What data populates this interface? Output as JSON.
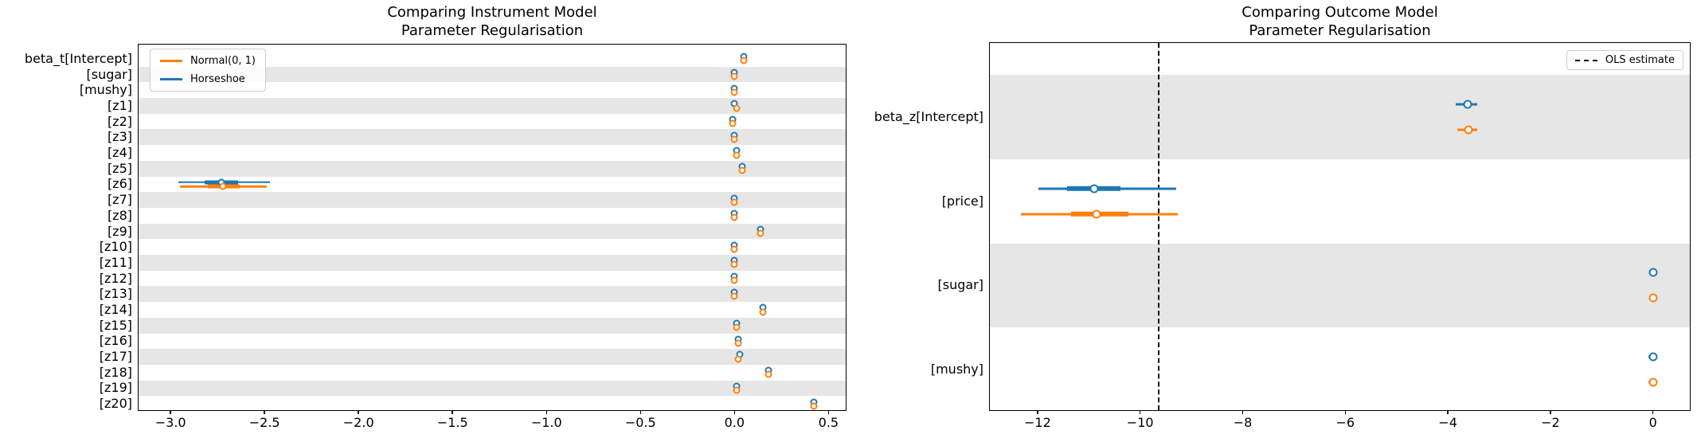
{
  "colors": {
    "horseshoe": "#1f77b4",
    "normal": "#ff7f0e",
    "row_band": "#e6e6e6",
    "ols_line": "#000000",
    "spine": "#000000",
    "legend_border": "#cccccc"
  },
  "left": {
    "title1": "Comparing Instrument Model",
    "title2": "Parameter Regularisation",
    "legend": {
      "normal_label": "Normal(0, 1)",
      "horseshoe_label": "Horseshoe"
    },
    "chart_data": {
      "type": "forest",
      "orientation": "horizontal",
      "legend_position": "upper-left",
      "series_names": [
        "Horseshoe",
        "Normal(0, 1)"
      ],
      "xlim": [
        -3.17,
        0.6
      ],
      "xticks": [
        -3.0,
        -2.5,
        -2.0,
        -1.5,
        -1.0,
        -0.5,
        0.0,
        0.5
      ],
      "xtick_labels": [
        "−3.0",
        "−2.5",
        "−2.0",
        "−1.5",
        "−1.0",
        "−0.5",
        "0.0",
        "0.5"
      ],
      "shaded_rows": "odd",
      "rows": [
        {
          "label": "beta_t[Intercept]",
          "horseshoe": {
            "median": 0.05
          },
          "normal": {
            "median": 0.05
          }
        },
        {
          "label": "[sugar]",
          "horseshoe": {
            "median": 0.0
          },
          "normal": {
            "median": 0.0
          }
        },
        {
          "label": "[mushy]",
          "horseshoe": {
            "median": 0.0
          },
          "normal": {
            "median": 0.0
          }
        },
        {
          "label": "[z1]",
          "horseshoe": {
            "median": 0.0
          },
          "normal": {
            "median": 0.01
          }
        },
        {
          "label": "[z2]",
          "horseshoe": {
            "median": -0.01
          },
          "normal": {
            "median": -0.01
          }
        },
        {
          "label": "[z3]",
          "horseshoe": {
            "median": 0.0
          },
          "normal": {
            "median": 0.0
          }
        },
        {
          "label": "[z4]",
          "horseshoe": {
            "median": 0.01
          },
          "normal": {
            "median": 0.01
          }
        },
        {
          "label": "[z5]",
          "horseshoe": {
            "median": 0.04
          },
          "normal": {
            "median": 0.04
          }
        },
        {
          "label": "[z6]",
          "horseshoe": {
            "median": -2.73,
            "ci": [
              -2.96,
              -2.47
            ],
            "thick_ci": [
              -2.82,
              -2.64
            ]
          },
          "normal": {
            "median": -2.72,
            "ci": [
              -2.95,
              -2.49
            ],
            "thick_ci": [
              -2.8,
              -2.63
            ]
          }
        },
        {
          "label": "[z7]",
          "horseshoe": {
            "median": 0.0
          },
          "normal": {
            "median": 0.0
          }
        },
        {
          "label": "[z8]",
          "horseshoe": {
            "median": 0.0
          },
          "normal": {
            "median": 0.0
          }
        },
        {
          "label": "[z9]",
          "horseshoe": {
            "median": 0.14
          },
          "normal": {
            "median": 0.14
          }
        },
        {
          "label": "[z10]",
          "horseshoe": {
            "median": 0.0
          },
          "normal": {
            "median": 0.0
          }
        },
        {
          "label": "[z11]",
          "horseshoe": {
            "median": 0.0
          },
          "normal": {
            "median": 0.0
          }
        },
        {
          "label": "[z12]",
          "horseshoe": {
            "median": 0.0
          },
          "normal": {
            "median": 0.0
          }
        },
        {
          "label": "[z13]",
          "horseshoe": {
            "median": 0.0
          },
          "normal": {
            "median": 0.0
          }
        },
        {
          "label": "[z14]",
          "horseshoe": {
            "median": 0.15
          },
          "normal": {
            "median": 0.15
          }
        },
        {
          "label": "[z15]",
          "horseshoe": {
            "median": 0.01
          },
          "normal": {
            "median": 0.01
          }
        },
        {
          "label": "[z16]",
          "horseshoe": {
            "median": 0.02
          },
          "normal": {
            "median": 0.02
          }
        },
        {
          "label": "[z17]",
          "horseshoe": {
            "median": 0.03
          },
          "normal": {
            "median": 0.02
          }
        },
        {
          "label": "[z18]",
          "horseshoe": {
            "median": 0.18
          },
          "normal": {
            "median": 0.18
          }
        },
        {
          "label": "[z19]",
          "horseshoe": {
            "median": 0.01
          },
          "normal": {
            "median": 0.01
          }
        },
        {
          "label": "[z20]",
          "horseshoe": {
            "median": 0.42
          },
          "normal": {
            "median": 0.42
          }
        }
      ]
    }
  },
  "right": {
    "title1": "Comparing Outcome Model",
    "title2": "Parameter Regularisation",
    "legend": {
      "ols_label": "OLS estimate"
    },
    "chart_data": {
      "type": "forest",
      "orientation": "horizontal",
      "legend_position": "upper-right",
      "series_names": [
        "Horseshoe",
        "Normal(0, 1)"
      ],
      "xlim": [
        -12.93,
        0.75
      ],
      "xticks": [
        -12,
        -10,
        -8,
        -6,
        -4,
        -2,
        0
      ],
      "xtick_labels": [
        "−12",
        "−10",
        "−8",
        "−6",
        "−4",
        "−2",
        "0"
      ],
      "shaded_rows": "even",
      "ols_estimate": -9.65,
      "rows": [
        {
          "label": "beta_z[Intercept]",
          "horseshoe": {
            "median": -3.62,
            "ci": [
              -3.85,
              -3.43
            ]
          },
          "normal": {
            "median": -3.6,
            "ci": [
              -3.82,
              -3.42
            ]
          }
        },
        {
          "label": "[price]",
          "horseshoe": {
            "median": -10.9,
            "ci": [
              -11.98,
              -9.3
            ],
            "thick_ci": [
              -11.43,
              -10.39
            ]
          },
          "normal": {
            "median": -10.85,
            "ci": [
              -12.32,
              -9.26
            ],
            "thick_ci": [
              -11.35,
              -10.23
            ]
          }
        },
        {
          "label": "[sugar]",
          "horseshoe": {
            "median": 0.0
          },
          "normal": {
            "median": 0.0
          }
        },
        {
          "label": "[mushy]",
          "horseshoe": {
            "median": 0.0,
            "ci": [
              -0.09,
              0.09
            ]
          },
          "normal": {
            "median": 0.0,
            "ci": [
              -0.09,
              0.09
            ]
          }
        }
      ]
    }
  }
}
